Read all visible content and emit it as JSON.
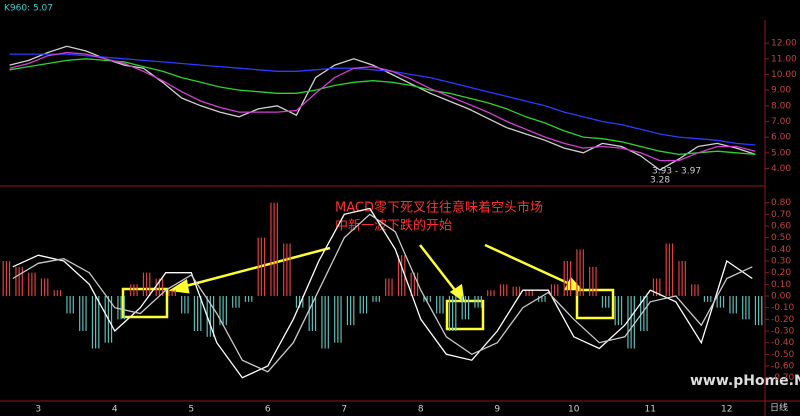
{
  "chart_data": [
    {
      "type": "line",
      "title": "K960: 5.07",
      "annotations": [
        "3.93 - 3.97",
        "3.28"
      ],
      "ylim": [
        3.2,
        12.2
      ],
      "yticks": [
        {
          "value": 12,
          "label": "12.00"
        },
        {
          "value": 11,
          "label": "11.00"
        },
        {
          "value": 10,
          "label": "10.00"
        },
        {
          "value": 9,
          "label": "9.00"
        },
        {
          "value": 8,
          "label": "8.00"
        },
        {
          "value": 7,
          "label": "7.00"
        },
        {
          "value": 6,
          "label": "6.00"
        },
        {
          "value": 5,
          "label": "5.00"
        },
        {
          "value": 4,
          "label": "4.00"
        }
      ],
      "series": [
        {
          "color": "#d0d0d0",
          "values": [
            10.6,
            10.9,
            11.4,
            11.8,
            11.5,
            11.0,
            10.6,
            10.4,
            9.5,
            8.5,
            8.0,
            7.6,
            7.3,
            7.8,
            8.0,
            7.4,
            9.8,
            10.6,
            11.0,
            10.6,
            10.0,
            9.4,
            8.8,
            8.3,
            7.8,
            7.2,
            6.6,
            6.2,
            5.8,
            5.3,
            5.0,
            5.6,
            5.4,
            4.8,
            3.9,
            4.6,
            5.4,
            5.6,
            5.3,
            4.9
          ]
        },
        {
          "color": "#2b3cff",
          "values": [
            11.3,
            11.3,
            11.3,
            11.3,
            11.2,
            11.1,
            11.0,
            10.9,
            10.8,
            10.7,
            10.6,
            10.5,
            10.4,
            10.3,
            10.2,
            10.2,
            10.3,
            10.4,
            10.4,
            10.3,
            10.2,
            10.0,
            9.8,
            9.5,
            9.2,
            8.9,
            8.6,
            8.3,
            8.0,
            7.6,
            7.3,
            7.0,
            6.8,
            6.5,
            6.2,
            6.0,
            5.9,
            5.8,
            5.6,
            5.5
          ]
        },
        {
          "color": "#2fd12f",
          "values": [
            10.3,
            10.5,
            10.7,
            10.9,
            11.0,
            10.9,
            10.8,
            10.5,
            10.2,
            9.8,
            9.5,
            9.2,
            9.0,
            8.9,
            8.8,
            8.8,
            9.0,
            9.3,
            9.5,
            9.6,
            9.5,
            9.3,
            9.0,
            8.8,
            8.5,
            8.2,
            7.8,
            7.3,
            6.9,
            6.4,
            6.0,
            5.9,
            5.7,
            5.4,
            5.1,
            4.9,
            5.0,
            5.1,
            5.0,
            4.9
          ]
        },
        {
          "color": "#d040d0",
          "values": [
            10.4,
            10.7,
            11.2,
            11.4,
            11.3,
            11.0,
            10.7,
            10.2,
            9.6,
            8.9,
            8.3,
            7.9,
            7.6,
            7.6,
            7.6,
            7.7,
            8.8,
            9.8,
            10.4,
            10.5,
            10.2,
            9.7,
            9.1,
            8.6,
            8.1,
            7.6,
            7.0,
            6.5,
            6.0,
            5.6,
            5.3,
            5.4,
            5.3,
            5.0,
            4.5,
            4.5,
            5.0,
            5.4,
            5.4,
            5.1
          ]
        }
      ]
    },
    {
      "type": "bar",
      "annotations": [
        "MACD零下死叉往往意味着空头市场",
        "中新一波下跌的开始"
      ],
      "watermark": "www.pHome.NET",
      "period": "日线",
      "xlabels": [
        "3",
        "4",
        "5",
        "6",
        "7",
        "8",
        "9",
        "10",
        "11",
        "12"
      ],
      "ylim": [
        -0.9,
        0.9
      ],
      "yticks": [
        {
          "value": 0.8,
          "label": "0.80"
        },
        {
          "value": 0.7,
          "label": "0.70"
        },
        {
          "value": 0.6,
          "label": "0.60"
        },
        {
          "value": 0.5,
          "label": "0.50"
        },
        {
          "value": 0.4,
          "label": "0.40"
        },
        {
          "value": 0.3,
          "label": "0.30"
        },
        {
          "value": 0.2,
          "label": "0.20"
        },
        {
          "value": 0.1,
          "label": "0.10"
        },
        {
          "value": 0,
          "label": "0.00"
        },
        {
          "value": -0.1,
          "label": "-0.10"
        },
        {
          "value": -0.2,
          "label": "-0.20"
        },
        {
          "value": -0.3,
          "label": "-0.30"
        },
        {
          "value": -0.4,
          "label": "-0.40"
        },
        {
          "value": -0.5,
          "label": "-0.50"
        },
        {
          "value": -0.6,
          "label": "-0.60"
        },
        {
          "value": -0.7,
          "label": "-0.70"
        }
      ],
      "color_up": "#e04040",
      "color_down": "#5fbcbc",
      "values": [
        0.3,
        0.25,
        0.2,
        0.15,
        0.05,
        -0.15,
        -0.3,
        -0.45,
        -0.4,
        -0.2,
        0.1,
        0.2,
        0.15,
        0.05,
        -0.15,
        -0.3,
        -0.35,
        -0.25,
        -0.1,
        -0.05,
        0.5,
        0.8,
        0.45,
        -0.1,
        -0.3,
        -0.45,
        -0.4,
        -0.25,
        -0.15,
        -0.05,
        0.15,
        0.35,
        0.2,
        -0.05,
        -0.15,
        -0.3,
        -0.2,
        -0.1,
        0.05,
        0.1,
        0.08,
        0.05,
        -0.05,
        0.1,
        0.3,
        0.4,
        0.25,
        -0.1,
        -0.25,
        -0.45,
        -0.3,
        0.15,
        0.45,
        0.3,
        0.1,
        -0.05,
        -0.1,
        -0.15,
        -0.2,
        -0.25
      ],
      "lines": [
        {
          "color": "#ffffff",
          "values": [
            0.25,
            0.35,
            0.3,
            0.1,
            -0.3,
            -0.1,
            0.2,
            0.2,
            -0.4,
            -0.7,
            -0.6,
            -0.2,
            0.3,
            0.7,
            0.75,
            0.4,
            -0.2,
            -0.5,
            -0.55,
            -0.3,
            0.05,
            0.05,
            -0.35,
            -0.45,
            -0.25,
            0.05,
            -0.05,
            -0.4,
            0.3,
            0.15
          ]
        },
        {
          "color": "#c8c8c8",
          "values": [
            0.15,
            0.28,
            0.32,
            0.2,
            -0.1,
            -0.15,
            0.05,
            0.18,
            -0.15,
            -0.55,
            -0.65,
            -0.4,
            0.05,
            0.5,
            0.7,
            0.55,
            0.05,
            -0.35,
            -0.5,
            -0.4,
            -0.1,
            0.03,
            -0.2,
            -0.4,
            -0.35,
            -0.05,
            0.0,
            -0.25,
            0.15,
            0.25
          ]
        }
      ]
    }
  ]
}
